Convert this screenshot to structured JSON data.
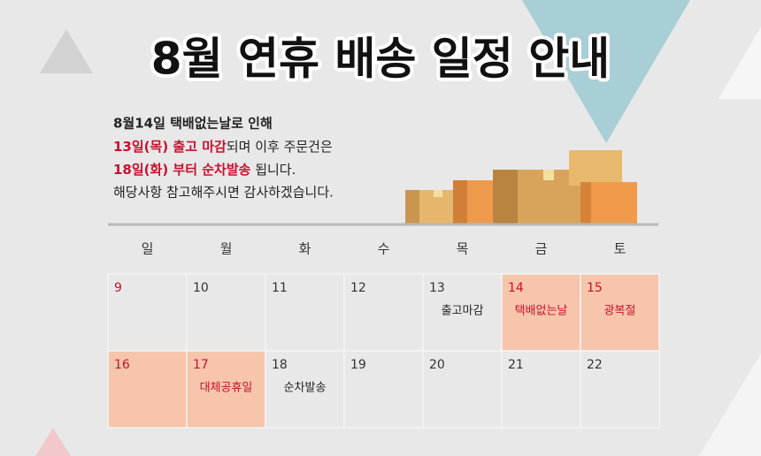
{
  "title": "8월 연휴 배송 일정 안내",
  "notice": {
    "line1": "8월14일 택배없는날로 인해",
    "line2": {
      "highlight": "13일(목) 출고 마감",
      "rest": "되며 이후 주문건은"
    },
    "line3": {
      "highlight": "18일(화) 부터 순차발송",
      "rest": " 됩니다."
    },
    "line4": "해당사항 참고해주시면 감사하겠습니다."
  },
  "calendar": {
    "weekdays": [
      "일",
      "월",
      "화",
      "수",
      "목",
      "금",
      "토"
    ],
    "weeks": [
      [
        {
          "day": "9",
          "color": "#c8102e",
          "fill": "#e8e8e8"
        },
        {
          "day": "10",
          "color": "#333333",
          "fill": "#e8e8e8"
        },
        {
          "day": "11",
          "color": "#333333",
          "fill": "#e8e8e8"
        },
        {
          "day": "12",
          "color": "#333333",
          "fill": "#e8e8e8"
        },
        {
          "day": "13",
          "note": "출고마감",
          "color": "#333333",
          "note_color": "#222222",
          "fill": "#e8e8e8"
        },
        {
          "day": "14",
          "note": "택배없는날",
          "color": "#c8102e",
          "note_color": "#c8102e",
          "fill": "#f6c5ab"
        },
        {
          "day": "15",
          "note": "광복절",
          "color": "#c8102e",
          "note_color": "#c8102e",
          "fill": "#f6c5ab"
        }
      ],
      [
        {
          "day": "16",
          "color": "#c8102e",
          "fill": "#f6c5ab"
        },
        {
          "day": "17",
          "note": "대체공휴일",
          "color": "#c8102e",
          "note_color": "#c8102e",
          "fill": "#f6c5ab"
        },
        {
          "day": "18",
          "note": "순차발송",
          "color": "#333333",
          "note_color": "#222222",
          "fill": "#e8e8e8"
        },
        {
          "day": "19",
          "color": "#333333",
          "fill": "#e8e8e8"
        },
        {
          "day": "20",
          "color": "#333333",
          "fill": "#e8e8e8"
        },
        {
          "day": "21",
          "color": "#333333",
          "fill": "#e8e8e8"
        },
        {
          "day": "22",
          "color": "#333333",
          "fill": "#e8e8e8"
        }
      ]
    ]
  }
}
